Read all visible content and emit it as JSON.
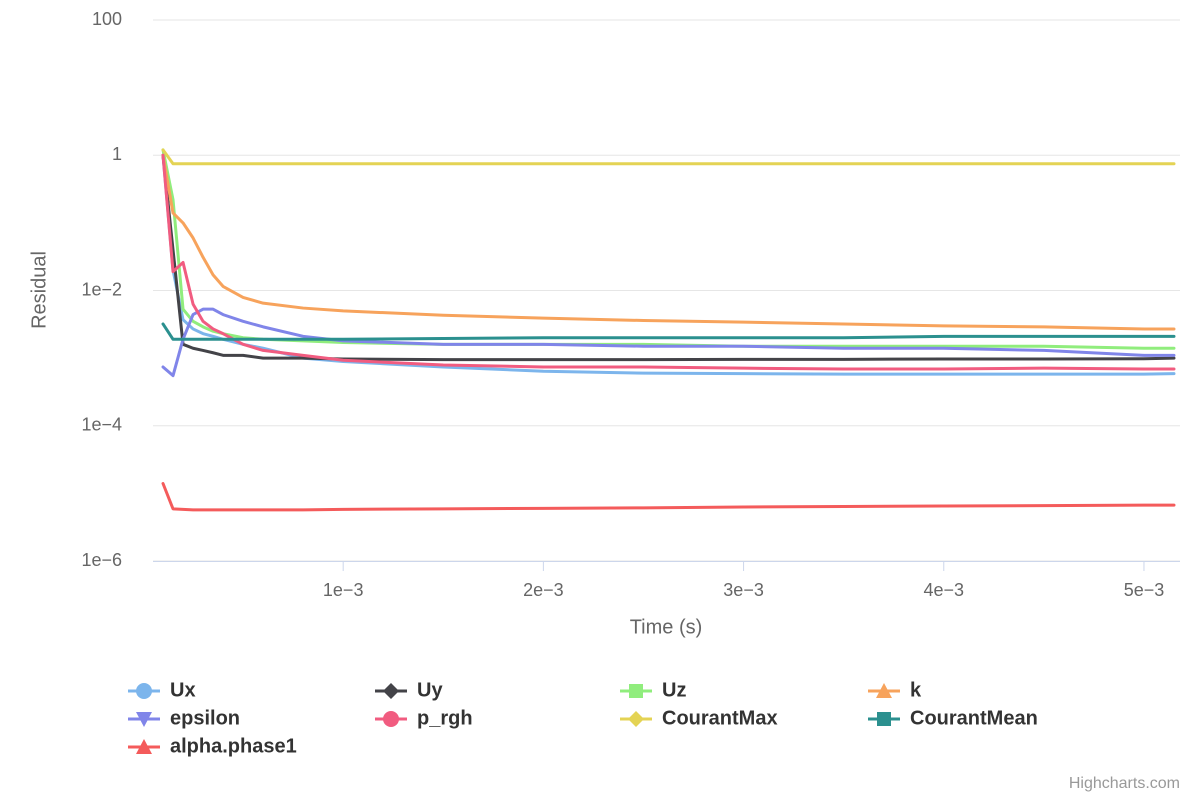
{
  "chart_data": {
    "type": "line",
    "xlabel": "Time (s)",
    "ylabel": "Residual",
    "credits": "Highcharts.com",
    "log_y": true,
    "grid": true,
    "legend": "bottom",
    "x": [
      0.0001,
      0.00015,
      0.0002,
      0.00025,
      0.0003,
      0.00035,
      0.0004,
      0.0005,
      0.0006,
      0.0008,
      0.001,
      0.0015,
      0.002,
      0.0025,
      0.003,
      0.0035,
      0.004,
      0.0045,
      0.005,
      0.00515
    ],
    "xlim": [
      5e-05,
      0.00518
    ],
    "xticks": [
      {
        "value": 0.001,
        "label": "1e−3"
      },
      {
        "value": 0.002,
        "label": "2e−3"
      },
      {
        "value": 0.003,
        "label": "3e−3"
      },
      {
        "value": 0.004,
        "label": "4e−3"
      },
      {
        "value": 0.005,
        "label": "5e−3"
      }
    ],
    "ylim": [
      1e-06,
      100
    ],
    "yticks": [
      {
        "value": 1e-06,
        "label": "1e−6"
      },
      {
        "value": 0.0001,
        "label": "1e−4"
      },
      {
        "value": 0.01,
        "label": "1e−2"
      },
      1,
      100
    ],
    "series": [
      {
        "name": "Ux",
        "color": "#7cb5ec",
        "marker": "circle",
        "values": [
          1,
          0.02,
          0.0037,
          0.0027,
          0.0023,
          0.0021,
          0.0019,
          0.0016,
          0.0014,
          0.001,
          0.00089,
          0.00074,
          0.00064,
          0.0006,
          0.00059,
          0.00058,
          0.00058,
          0.00058,
          0.00058,
          0.00059
        ]
      },
      {
        "name": "Uy",
        "color": "#434348",
        "marker": "diamond",
        "values": [
          1,
          0.04,
          0.0016,
          0.0014,
          0.0013,
          0.0012,
          0.0011,
          0.0011,
          0.001,
          0.001,
          0.00097,
          0.00095,
          0.00095,
          0.00095,
          0.00096,
          0.00096,
          0.00097,
          0.00097,
          0.00098,
          0.001
        ]
      },
      {
        "name": "Uz",
        "color": "#90ed7d",
        "marker": "square",
        "values": [
          1.2,
          0.22,
          0.0053,
          0.0035,
          0.0029,
          0.0025,
          0.0023,
          0.002,
          0.0019,
          0.0018,
          0.0017,
          0.0016,
          0.0016,
          0.0016,
          0.0015,
          0.0015,
          0.0015,
          0.0015,
          0.0014,
          0.0014
        ]
      },
      {
        "name": "k",
        "color": "#f7a35c",
        "marker": "triangle",
        "values": [
          1,
          0.14,
          0.1,
          0.06,
          0.031,
          0.017,
          0.0115,
          0.0079,
          0.0065,
          0.0055,
          0.005,
          0.0043,
          0.0039,
          0.0036,
          0.0034,
          0.0032,
          0.003,
          0.0029,
          0.0027,
          0.0027
        ]
      },
      {
        "name": "epsilon",
        "color": "#8085e9",
        "marker": "triangle-down",
        "values": [
          0.00074,
          0.00055,
          0.0019,
          0.0044,
          0.0053,
          0.0053,
          0.0044,
          0.0035,
          0.0029,
          0.0021,
          0.0018,
          0.0016,
          0.0016,
          0.0015,
          0.0015,
          0.0014,
          0.0014,
          0.0013,
          0.0011,
          0.0011
        ]
      },
      {
        "name": "p_rgh",
        "color": "#f15c80",
        "marker": "circle",
        "values": [
          1,
          0.019,
          0.026,
          0.0063,
          0.0035,
          0.0027,
          0.0023,
          0.0016,
          0.0013,
          0.0011,
          0.00093,
          0.00079,
          0.00074,
          0.00074,
          0.00071,
          0.00069,
          0.00069,
          0.00071,
          0.00069,
          0.00069
        ]
      },
      {
        "name": "CourantMax",
        "color": "#e4d354",
        "marker": "diamond",
        "values": [
          1.2,
          0.75,
          0.75,
          0.75,
          0.75,
          0.75,
          0.75,
          0.75,
          0.75,
          0.75,
          0.75,
          0.75,
          0.75,
          0.75,
          0.75,
          0.75,
          0.75,
          0.75,
          0.75,
          0.75
        ]
      },
      {
        "name": "CourantMean",
        "color": "#2b908f",
        "marker": "square",
        "values": [
          0.0032,
          0.0019,
          0.0019,
          0.0019,
          0.0019,
          0.0019,
          0.0019,
          0.0019,
          0.0019,
          0.0019,
          0.0019,
          0.00195,
          0.002,
          0.002,
          0.002,
          0.002,
          0.0021,
          0.0021,
          0.0021,
          0.0021
        ]
      },
      {
        "name": "alpha.phase1",
        "color": "#f45b5b",
        "marker": "triangle",
        "values": [
          1.4e-05,
          5.9e-06,
          5.8e-06,
          5.7e-06,
          5.7e-06,
          5.7e-06,
          5.7e-06,
          5.7e-06,
          5.7e-06,
          5.7e-06,
          5.8e-06,
          5.9e-06,
          6e-06,
          6.1e-06,
          6.3e-06,
          6.4e-06,
          6.5e-06,
          6.6e-06,
          6.7e-06,
          6.7e-06
        ]
      }
    ]
  }
}
